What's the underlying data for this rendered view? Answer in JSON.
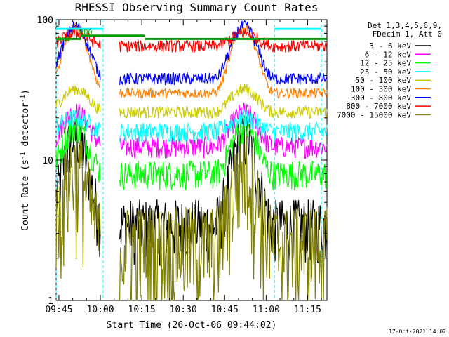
{
  "chart_data": {
    "type": "line",
    "title": "RHESSI Observing Summary Count Rates",
    "xlabel": "Start Time (26-Oct-06 09:44:02)",
    "ylabel_main": "Count Rate (s",
    "ylabel_sup1": "-1",
    "ylabel_mid": " detector",
    "ylabel_sup2": "-1",
    "ylabel_end": ")",
    "ylog": true,
    "ylim": [
      1,
      100
    ],
    "xlim_minutes": [
      0,
      98
    ],
    "x_tick_labels": [
      "09:45",
      "10:00",
      "10:15",
      "10:30",
      "10:45",
      "11:00",
      "11:15"
    ],
    "x_tick_minutes": [
      1,
      16,
      31,
      46,
      61,
      76,
      91
    ],
    "y_tick_labels": [
      "1",
      "10",
      "100"
    ],
    "y_tick_values": [
      1,
      10,
      100
    ],
    "legend_info": [
      "Det 1,3,4,5,6,9,",
      "FDecim 1, Att 0"
    ],
    "legend_position": "top-right",
    "series": [
      {
        "name": "3 - 6 keV",
        "color": "#000000",
        "base": 3.5,
        "peak": 15,
        "noise": 0.25,
        "floor": 1.0
      },
      {
        "name": "6 - 12 keV",
        "color": "#ff00ff",
        "base": 12.5,
        "peak": 22,
        "noise": 0.09,
        "floor": 1.0
      },
      {
        "name": "12 - 25 keV",
        "color": "#00ff00",
        "base": 8,
        "peak": 17,
        "noise": 0.12,
        "floor": 1.0
      },
      {
        "name": "25 - 50 keV",
        "color": "#00ffff",
        "base": 16,
        "peak": 20,
        "noise": 0.08,
        "floor": 1.0
      },
      {
        "name": "50 - 100 keV",
        "color": "#cccc00",
        "base": 22,
        "peak": 32,
        "noise": 0.05,
        "floor": 1.0
      },
      {
        "name": "100 - 300 keV",
        "color": "#ff8000",
        "base": 30,
        "peak": 88,
        "noise": 0.04,
        "floor": 1.0
      },
      {
        "name": "300 - 800 keV",
        "color": "#0000ff",
        "base": 38,
        "peak": 90,
        "noise": 0.05,
        "floor": 1.0
      },
      {
        "name": "800 - 7000 keV",
        "color": "#ff0000",
        "base": 65,
        "peak": 80,
        "noise": 0.05,
        "floor": 1.0
      },
      {
        "name": "7000 - 15000 keV",
        "color": "#808000",
        "base": 2.6,
        "peak": 9,
        "noise": 0.4,
        "floor": 1.0
      }
    ],
    "peak_minutes": [
      7,
      68
    ],
    "peak_halfwidth": 11,
    "annotations": [
      {
        "text": "RD0",
        "color": "#00a000",
        "minute": 8,
        "value": 82
      },
      {
        "text": "RD4",
        "color": "#00a000",
        "minute": 0,
        "value": 73
      }
    ],
    "green_level_segments": [
      {
        "from": 0,
        "to": 9,
        "value": 73
      },
      {
        "from": 9,
        "to": 32,
        "value": 77
      },
      {
        "from": 32,
        "to": 98,
        "value": 73
      }
    ],
    "night_markers_minutes": [
      0,
      17,
      79,
      96
    ],
    "cyan_level_segments": [
      {
        "from": 0,
        "to": 17,
        "value": 86
      },
      {
        "from": 79,
        "to": 96,
        "value": 86
      }
    ],
    "gaps_minutes": [
      [
        16,
        23
      ]
    ],
    "timestamp": "17-Oct-2021 14:02"
  }
}
